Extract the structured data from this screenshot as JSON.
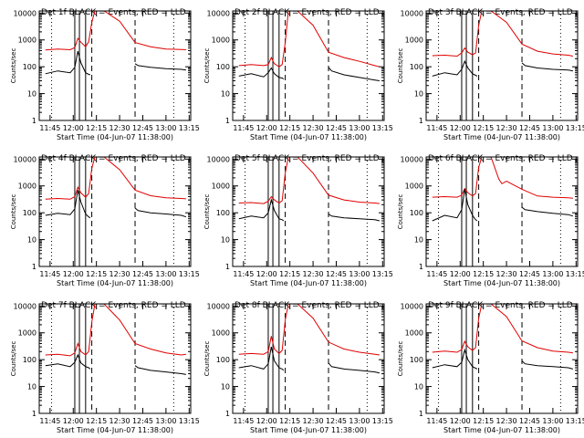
{
  "colors": {
    "events": "#000000",
    "lld": "#e00000",
    "background": "#ffffff"
  },
  "shared_axes": {
    "ylabel": "Counts/sec",
    "xlabel": "Start Time (04-Jun-07 11:38:00)",
    "x_ticks": [
      "11:45",
      "12:00",
      "12:15",
      "12:30",
      "12:45",
      "13:00",
      "13:15"
    ],
    "y_ticks": [
      "1",
      "10",
      "100",
      "1000",
      "10000"
    ],
    "y_scale": "log",
    "xlim": [
      "11:38",
      "13:16"
    ],
    "ylim": [
      1,
      12000
    ],
    "grid": false
  },
  "markers": {
    "solid": [
      "12:01",
      "12:04",
      "12:08"
    ],
    "dashed": [
      "12:12",
      "12:40"
    ],
    "dotted": [
      "11:46",
      "13:05"
    ]
  },
  "chart_data": [
    {
      "type": "line",
      "title": "Det 1f BLACK = Events, RED = LLD",
      "series": [
        {
          "color": "#e00000",
          "x": [
            "11:42",
            "11:50",
            "11:58",
            "12:01",
            "12:03",
            "12:05",
            "12:08",
            "12:10",
            "12:12",
            "12:14",
            "12:20",
            "12:30",
            "12:40",
            "12:50",
            "13:00",
            "13:10",
            "13:13"
          ],
          "y": [
            420,
            460,
            430,
            520,
            1150,
            820,
            560,
            850,
            4500,
            12000,
            12000,
            5000,
            800,
            560,
            460,
            440,
            430
          ]
        },
        {
          "color": "#000000",
          "x": [
            "11:42",
            "11:50",
            "11:58",
            "12:01",
            "12:03",
            "12:05",
            "12:08",
            "12:10",
            "12:11"
          ],
          "y": [
            55,
            70,
            60,
            95,
            380,
            140,
            60,
            52,
            50
          ]
        },
        {
          "color": "#000000",
          "x": [
            "12:40",
            "12:42",
            "12:50",
            "13:00",
            "13:10",
            "13:13"
          ],
          "y": [
            130,
            110,
            95,
            85,
            80,
            75
          ]
        }
      ]
    },
    {
      "type": "line",
      "title": "Det 2f BLACK = Events, RED = LLD",
      "series": [
        {
          "color": "#e00000",
          "x": [
            "11:42",
            "11:50",
            "11:58",
            "12:01",
            "12:03",
            "12:05",
            "12:08",
            "12:10",
            "12:12",
            "12:14",
            "12:20",
            "12:30",
            "12:40",
            "12:50",
            "13:00",
            "13:10",
            "13:13"
          ],
          "y": [
            110,
            120,
            110,
            120,
            220,
            130,
            100,
            120,
            800,
            12000,
            12000,
            3500,
            350,
            220,
            160,
            110,
            100
          ]
        },
        {
          "color": "#000000",
          "x": [
            "11:42",
            "11:50",
            "11:58",
            "12:01",
            "12:03",
            "12:05",
            "12:08",
            "12:10",
            "12:11"
          ],
          "y": [
            45,
            55,
            42,
            60,
            90,
            55,
            40,
            38,
            35
          ]
        },
        {
          "color": "#000000",
          "x": [
            "12:40",
            "12:42",
            "12:50",
            "13:00",
            "13:10",
            "13:13"
          ],
          "y": [
            95,
            70,
            50,
            40,
            32,
            30
          ]
        }
      ]
    },
    {
      "type": "line",
      "title": "Det 3f BLACK = Events, RED = LLD",
      "series": [
        {
          "color": "#e00000",
          "x": [
            "11:42",
            "11:50",
            "11:58",
            "12:01",
            "12:03",
            "12:05",
            "12:08",
            "12:10",
            "12:12",
            "12:14",
            "12:20",
            "12:30",
            "12:40",
            "12:50",
            "13:00",
            "13:10",
            "13:13"
          ],
          "y": [
            260,
            270,
            250,
            330,
            500,
            350,
            280,
            330,
            3500,
            12000,
            12000,
            4500,
            700,
            380,
            300,
            270,
            250
          ]
        },
        {
          "color": "#000000",
          "x": [
            "11:42",
            "11:50",
            "11:58",
            "12:01",
            "12:03",
            "12:05",
            "12:08",
            "12:10",
            "12:11"
          ],
          "y": [
            45,
            60,
            50,
            80,
            160,
            90,
            55,
            48,
            45
          ]
        },
        {
          "color": "#000000",
          "x": [
            "12:40",
            "12:42",
            "12:50",
            "13:00",
            "13:10",
            "13:13"
          ],
          "y": [
            140,
            110,
            90,
            80,
            75,
            70
          ]
        }
      ]
    },
    {
      "type": "line",
      "title": "Det 4f BLACK = Events, RED = LLD",
      "series": [
        {
          "color": "#e00000",
          "x": [
            "11:42",
            "11:50",
            "11:58",
            "12:01",
            "12:03",
            "12:05",
            "12:08",
            "12:10",
            "12:12",
            "12:14",
            "12:20",
            "12:30",
            "12:40",
            "12:50",
            "13:00",
            "13:10",
            "13:13"
          ],
          "y": [
            320,
            340,
            320,
            400,
            900,
            550,
            380,
            520,
            4500,
            12000,
            12000,
            4000,
            700,
            430,
            360,
            340,
            330
          ]
        },
        {
          "color": "#000000",
          "x": [
            "11:42",
            "11:50",
            "11:58",
            "12:01",
            "12:03",
            "12:05",
            "12:08",
            "12:10",
            "12:11"
          ],
          "y": [
            80,
            95,
            85,
            140,
            700,
            250,
            90,
            70,
            65
          ]
        },
        {
          "color": "#000000",
          "x": [
            "12:40",
            "12:42",
            "12:50",
            "13:00",
            "13:10",
            "13:13"
          ],
          "y": [
            150,
            120,
            100,
            90,
            80,
            70
          ]
        }
      ]
    },
    {
      "type": "line",
      "title": "Det 5f BLACK = Events, RED = LLD",
      "series": [
        {
          "color": "#e00000",
          "x": [
            "11:42",
            "11:50",
            "11:58",
            "12:01",
            "12:03",
            "12:05",
            "12:08",
            "12:10",
            "12:12",
            "12:14",
            "12:20",
            "12:30",
            "12:40",
            "12:50",
            "13:00",
            "13:10",
            "13:13"
          ],
          "y": [
            230,
            240,
            220,
            270,
            400,
            300,
            230,
            280,
            3000,
            12000,
            12000,
            3000,
            450,
            300,
            250,
            230,
            220
          ]
        },
        {
          "color": "#000000",
          "x": [
            "11:42",
            "11:50",
            "11:58",
            "12:01",
            "12:03",
            "12:05",
            "12:08",
            "12:10",
            "12:11"
          ],
          "y": [
            60,
            75,
            65,
            100,
            300,
            120,
            60,
            55,
            50
          ]
        },
        {
          "color": "#000000",
          "x": [
            "12:40",
            "12:42",
            "12:50",
            "13:00",
            "13:10",
            "13:13"
          ],
          "y": [
            90,
            75,
            65,
            60,
            55,
            50
          ]
        }
      ]
    },
    {
      "type": "line",
      "title": "Det 6f BLACK = Events, RED = LLD",
      "series": [
        {
          "color": "#e00000",
          "x": [
            "11:42",
            "11:50",
            "11:58",
            "12:01",
            "12:03",
            "12:05",
            "12:08",
            "12:10",
            "12:12",
            "12:14",
            "12:20",
            "12:25",
            "12:27",
            "12:30",
            "12:40",
            "12:50",
            "13:00",
            "13:10",
            "13:13"
          ],
          "y": [
            380,
            400,
            380,
            450,
            800,
            560,
            420,
            520,
            5000,
            12000,
            12000,
            1800,
            1200,
            1500,
            750,
            420,
            380,
            360,
            350
          ]
        },
        {
          "color": "#000000",
          "x": [
            "11:42",
            "11:50",
            "11:58",
            "12:01",
            "12:03",
            "12:05",
            "12:08",
            "12:10",
            "12:11"
          ],
          "y": [
            50,
            80,
            65,
            130,
            750,
            200,
            80,
            55,
            50
          ]
        },
        {
          "color": "#000000",
          "x": [
            "12:40",
            "12:42",
            "12:50",
            "13:00",
            "13:10",
            "13:13"
          ],
          "y": [
            160,
            130,
            110,
            95,
            85,
            75
          ]
        }
      ]
    },
    {
      "type": "line",
      "title": "Det 7f BLACK = Events, RED = LLD",
      "series": [
        {
          "color": "#e00000",
          "x": [
            "11:42",
            "11:50",
            "11:58",
            "12:01",
            "12:03",
            "12:05",
            "12:08",
            "12:10",
            "12:12",
            "12:14",
            "12:20",
            "12:30",
            "12:40",
            "12:50",
            "13:00",
            "13:10",
            "13:13"
          ],
          "y": [
            150,
            160,
            140,
            180,
            400,
            200,
            150,
            200,
            2500,
            12000,
            12000,
            3000,
            400,
            250,
            180,
            150,
            160
          ]
        },
        {
          "color": "#000000",
          "x": [
            "11:42",
            "11:50",
            "11:58",
            "12:01",
            "12:03",
            "12:05",
            "12:08",
            "12:10",
            "12:11"
          ],
          "y": [
            60,
            70,
            55,
            80,
            150,
            75,
            55,
            50,
            45
          ]
        },
        {
          "color": "#000000",
          "x": [
            "12:40",
            "12:42",
            "12:50",
            "13:00",
            "13:10",
            "13:13"
          ],
          "y": [
            60,
            50,
            40,
            35,
            30,
            28
          ]
        }
      ]
    },
    {
      "type": "line",
      "title": "Det 8f BLACK = Events, RED = LLD",
      "series": [
        {
          "color": "#e00000",
          "x": [
            "11:42",
            "11:50",
            "11:58",
            "12:01",
            "12:03",
            "12:05",
            "12:08",
            "12:10",
            "12:12",
            "12:14",
            "12:20",
            "12:30",
            "12:40",
            "12:50",
            "13:00",
            "13:10",
            "13:13"
          ],
          "y": [
            160,
            170,
            160,
            200,
            750,
            250,
            170,
            220,
            3000,
            12000,
            12000,
            3500,
            450,
            250,
            190,
            160,
            150
          ]
        },
        {
          "color": "#000000",
          "x": [
            "11:42",
            "11:50",
            "11:58",
            "12:01",
            "12:03",
            "12:05",
            "12:08",
            "12:10",
            "12:11"
          ],
          "y": [
            50,
            60,
            45,
            70,
            300,
            90,
            50,
            45,
            40
          ]
        },
        {
          "color": "#000000",
          "x": [
            "12:40",
            "12:42",
            "12:50",
            "13:00",
            "13:10",
            "13:13"
          ],
          "y": [
            75,
            55,
            45,
            40,
            35,
            32
          ]
        }
      ]
    },
    {
      "type": "line",
      "title": "Det 9f BLACK = Events, RED = LLD",
      "series": [
        {
          "color": "#e00000",
          "x": [
            "11:42",
            "11:50",
            "11:58",
            "12:01",
            "12:03",
            "12:05",
            "12:08",
            "12:10",
            "12:12",
            "12:14",
            "12:20",
            "12:30",
            "12:40",
            "12:50",
            "13:00",
            "13:10",
            "13:13"
          ],
          "y": [
            190,
            210,
            190,
            240,
            480,
            300,
            220,
            280,
            3500,
            12000,
            12000,
            4000,
            500,
            280,
            210,
            190,
            180
          ]
        },
        {
          "color": "#000000",
          "x": [
            "11:42",
            "11:50",
            "11:58",
            "12:01",
            "12:03",
            "12:05",
            "12:08",
            "12:10",
            "12:11"
          ],
          "y": [
            50,
            65,
            55,
            80,
            230,
            100,
            55,
            48,
            45
          ]
        },
        {
          "color": "#000000",
          "x": [
            "12:40",
            "12:42",
            "12:50",
            "13:00",
            "13:10",
            "13:13"
          ],
          "y": [
            90,
            70,
            60,
            55,
            50,
            45
          ]
        }
      ]
    }
  ]
}
